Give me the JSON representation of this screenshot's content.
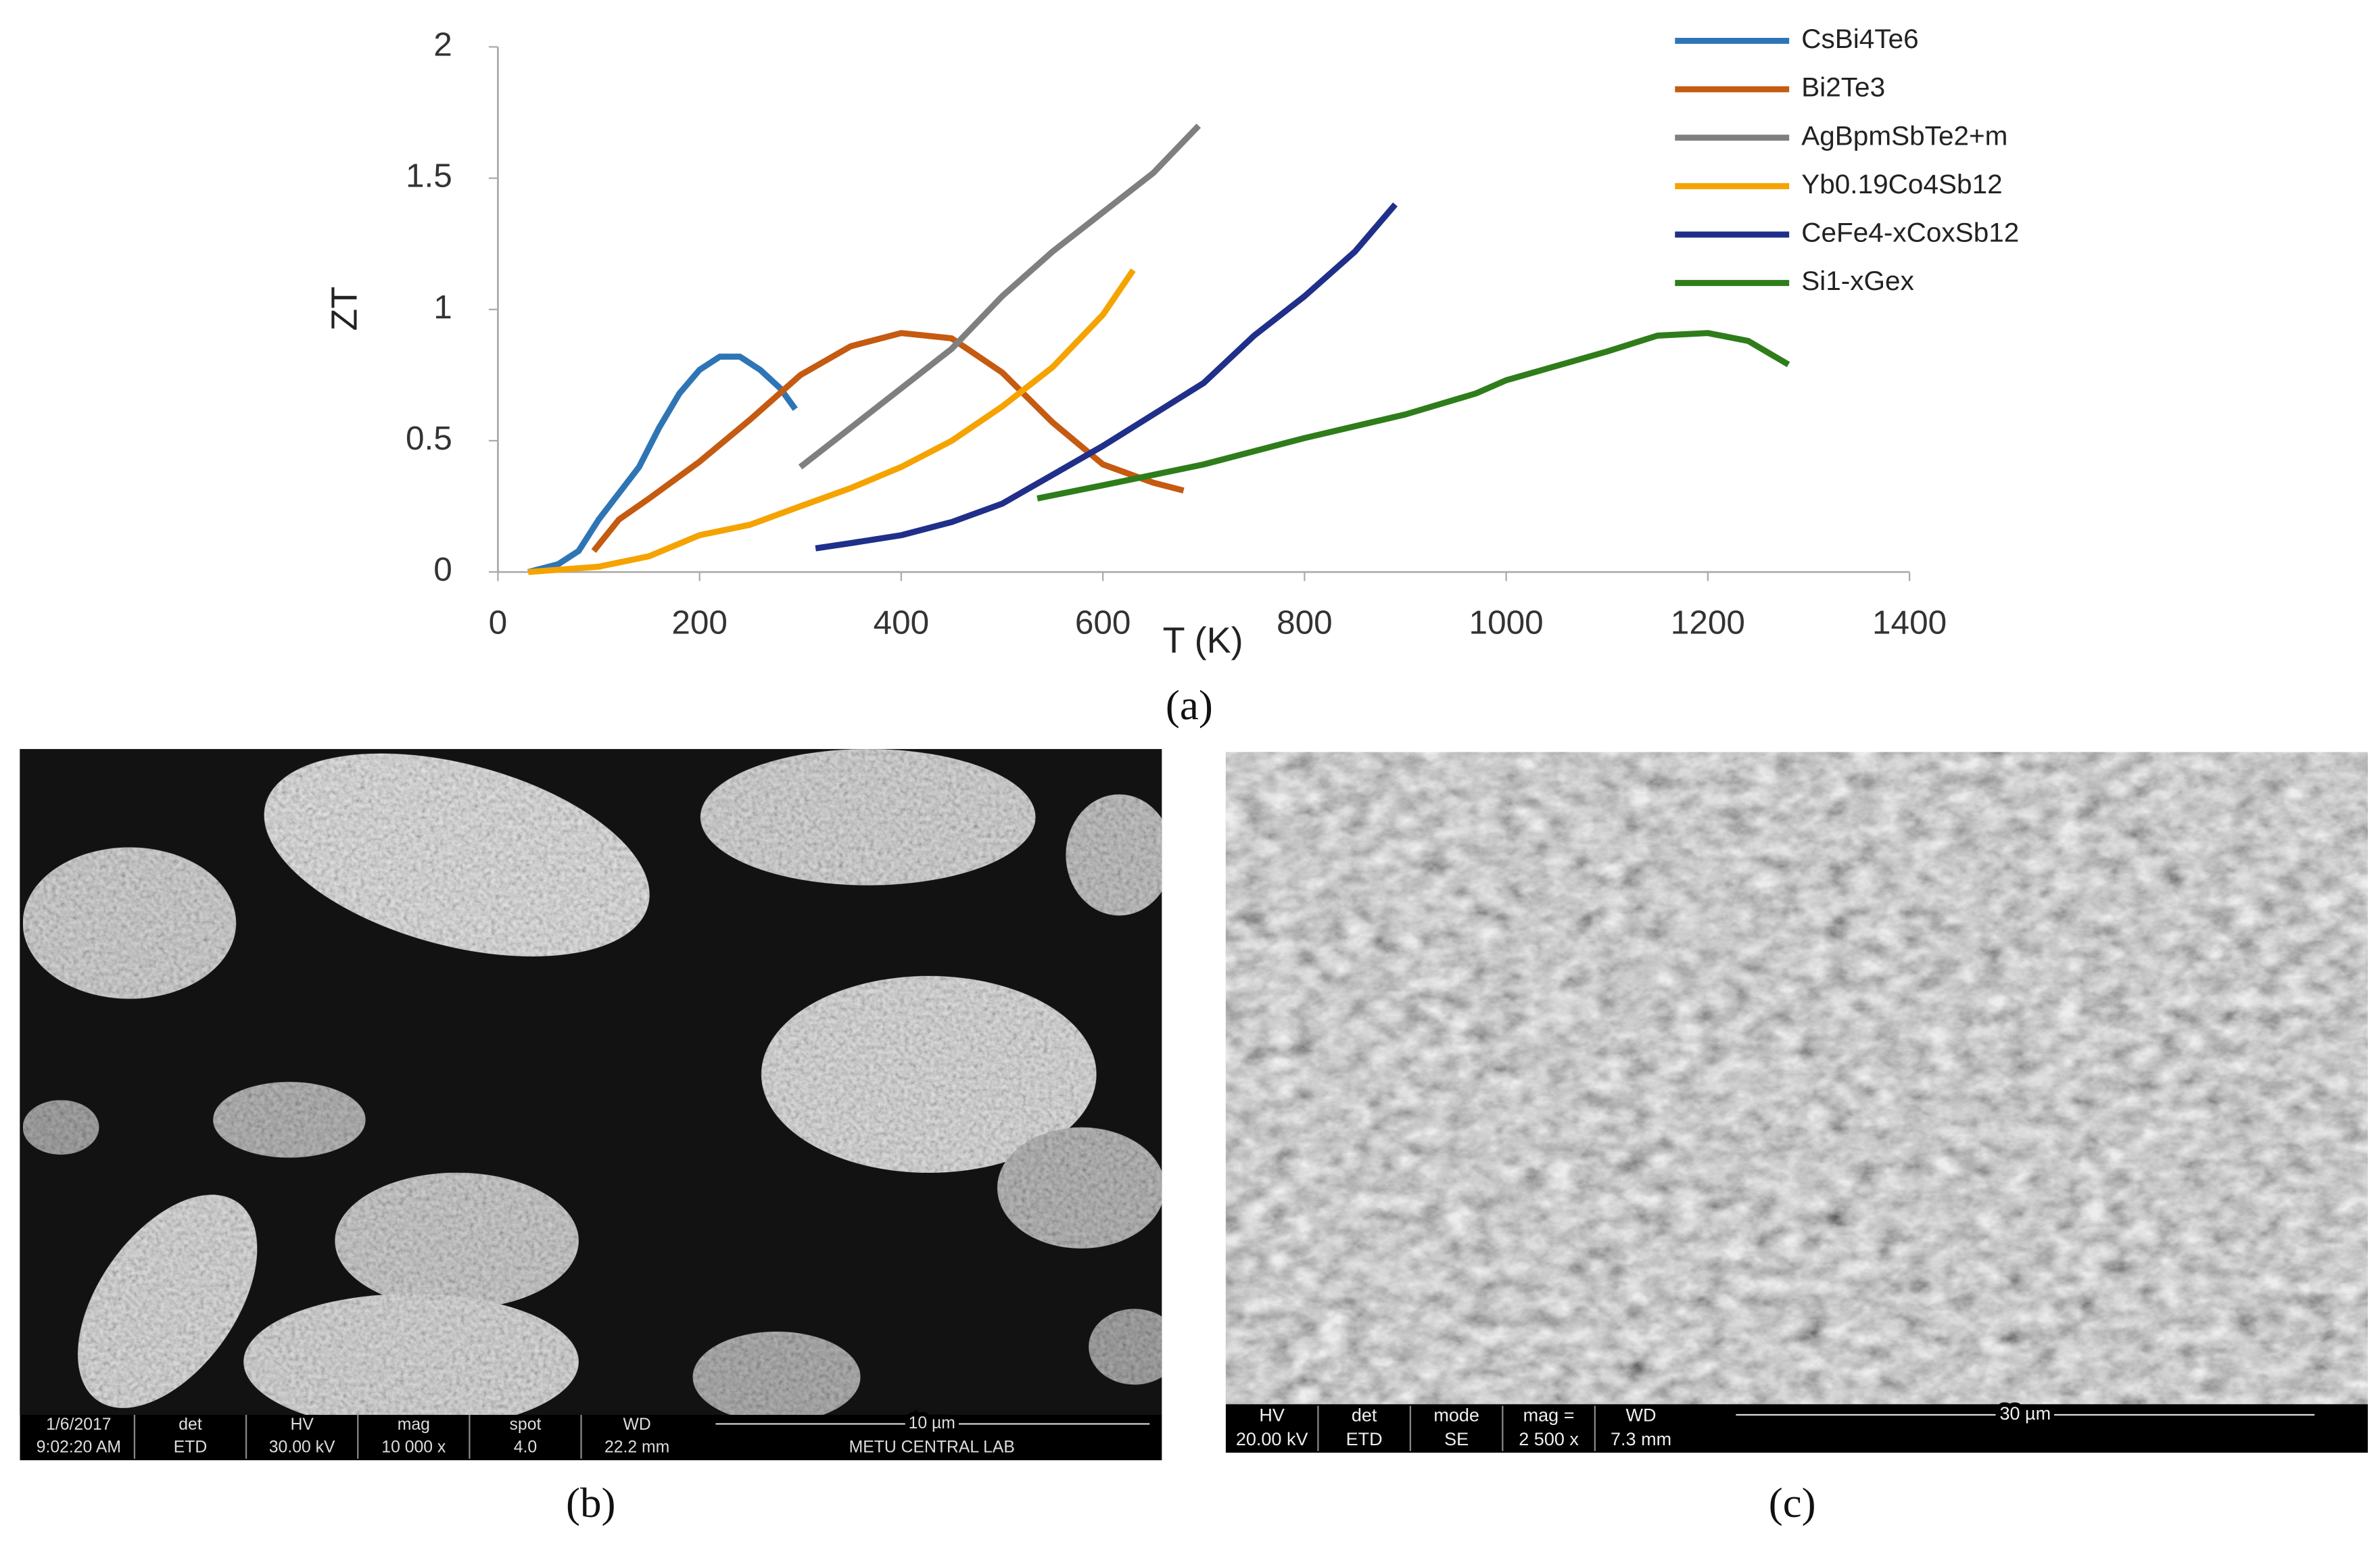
{
  "chart_data": {
    "type": "line",
    "x_label": "T (K)",
    "y_label": "ZT",
    "caption": "(a)",
    "xlim": [
      0,
      1400
    ],
    "xticks": [
      0,
      200,
      400,
      600,
      800,
      1000,
      1200,
      1400
    ],
    "ylim": [
      0,
      2
    ],
    "yticks": [
      0,
      0.5,
      1,
      1.5,
      2
    ],
    "legend": "top-right",
    "series": [
      {
        "name": "CsBi4Te6",
        "color": "#2e75b6",
        "x": [
          30,
          60,
          80,
          100,
          120,
          140,
          160,
          180,
          200,
          220,
          240,
          260,
          280,
          295
        ],
        "values": [
          0,
          0.03,
          0.08,
          0.2,
          0.3,
          0.4,
          0.55,
          0.68,
          0.77,
          0.82,
          0.82,
          0.77,
          0.7,
          0.62
        ]
      },
      {
        "name": "Bi2Te3",
        "color": "#c55a11",
        "x": [
          95,
          120,
          150,
          200,
          250,
          300,
          350,
          400,
          450,
          500,
          550,
          600,
          650,
          680
        ],
        "values": [
          0.08,
          0.2,
          0.28,
          0.42,
          0.58,
          0.75,
          0.86,
          0.91,
          0.89,
          0.76,
          0.57,
          0.41,
          0.34,
          0.31
        ]
      },
      {
        "name": "AgBpmSbTe2+m",
        "color": "#7f7f7f",
        "x": [
          300,
          350,
          400,
          450,
          500,
          550,
          600,
          650,
          695
        ],
        "values": [
          0.4,
          0.55,
          0.7,
          0.85,
          1.05,
          1.22,
          1.37,
          1.52,
          1.7
        ]
      },
      {
        "name": "Yb0.19Co4Sb12",
        "color": "#f5a300",
        "x": [
          30,
          100,
          150,
          200,
          250,
          300,
          350,
          400,
          450,
          500,
          550,
          600,
          630
        ],
        "values": [
          0,
          0.02,
          0.06,
          0.14,
          0.18,
          0.25,
          0.32,
          0.4,
          0.5,
          0.63,
          0.78,
          0.98,
          1.15
        ]
      },
      {
        "name": "CeFe4-xCoxSb12",
        "color": "#1f2f8a",
        "x": [
          315,
          350,
          400,
          450,
          500,
          550,
          600,
          650,
          700,
          750,
          800,
          850,
          890
        ],
        "values": [
          0.09,
          0.11,
          0.14,
          0.19,
          0.26,
          0.37,
          0.48,
          0.6,
          0.72,
          0.9,
          1.05,
          1.22,
          1.4
        ]
      },
      {
        "name": "Si1-xGex",
        "color": "#2e7d1a",
        "x": [
          535,
          600,
          700,
          800,
          900,
          970,
          1000,
          1100,
          1150,
          1200,
          1240,
          1280
        ],
        "values": [
          0.28,
          0.33,
          0.41,
          0.51,
          0.6,
          0.68,
          0.73,
          0.84,
          0.9,
          0.91,
          0.88,
          0.79
        ]
      }
    ]
  },
  "panel_b": {
    "caption": "(b)",
    "info_headers": [
      "1/6/2017",
      "det",
      "HV",
      "mag",
      "spot",
      "WD"
    ],
    "info_values": [
      "9:02:20 AM",
      "ETD",
      "30.00 kV",
      "10 000 x",
      "4.0",
      "22.2 mm"
    ],
    "scale": "10 µm",
    "lab": "METU CENTRAL LAB"
  },
  "panel_c": {
    "caption": "(c)",
    "info_headers": [
      "HV",
      "det",
      "mode",
      "mag =",
      "WD"
    ],
    "info_values": [
      "20.00 kV",
      "ETD",
      "SE",
      "2 500 x",
      "7.3 mm"
    ],
    "scale": "30 µm"
  }
}
